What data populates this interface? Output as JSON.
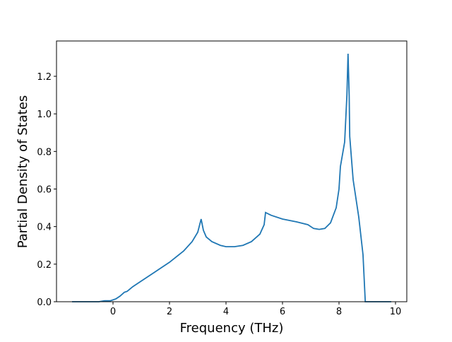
{
  "chart_data": {
    "type": "line",
    "x_label": "Frequency (THz)",
    "y_label": "Partial Density of States",
    "x": [
      -1.45,
      -0.5,
      -0.3,
      -0.1,
      0.1,
      0.25,
      0.4,
      0.5,
      0.7,
      1.0,
      1.5,
      2.0,
      2.5,
      2.8,
      3.0,
      3.12,
      3.2,
      3.3,
      3.5,
      3.8,
      4.0,
      4.3,
      4.6,
      4.9,
      5.2,
      5.35,
      5.4,
      5.6,
      6.0,
      6.5,
      6.9,
      7.1,
      7.3,
      7.5,
      7.7,
      7.9,
      8.0,
      8.05,
      8.2,
      8.28,
      8.32,
      8.36,
      8.38,
      8.5,
      8.7,
      8.85,
      8.93,
      9.85
    ],
    "series": [
      {
        "color": "#1f77b4",
        "values": [
          0,
          0,
          0.005,
          0.005,
          0.015,
          0.03,
          0.05,
          0.055,
          0.08,
          0.11,
          0.16,
          0.21,
          0.27,
          0.32,
          0.37,
          0.44,
          0.38,
          0.345,
          0.32,
          0.3,
          0.293,
          0.293,
          0.3,
          0.32,
          0.36,
          0.41,
          0.475,
          0.46,
          0.44,
          0.425,
          0.41,
          0.39,
          0.385,
          0.39,
          0.42,
          0.5,
          0.6,
          0.72,
          0.85,
          1.1,
          1.32,
          1.1,
          0.88,
          0.65,
          0.45,
          0.25,
          0,
          0
        ]
      }
    ],
    "xlim": [
      -2,
      10.4
    ],
    "ylim": [
      0,
      1.388
    ],
    "xticks": [
      0,
      2,
      4,
      6,
      8,
      10
    ],
    "yticks": [
      {
        "value": 0,
        "label": "0.0"
      },
      0.2,
      0.4,
      0.6,
      0.8,
      {
        "value": 1,
        "label": "1.0"
      },
      1.2
    ]
  }
}
